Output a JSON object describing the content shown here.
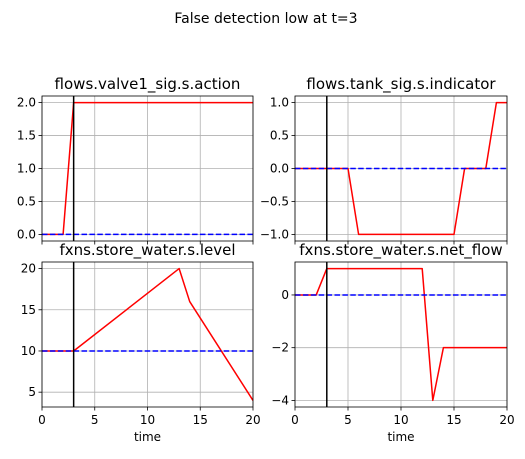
{
  "figure": {
    "suptitle": "False detection low at t=3"
  },
  "colors": {
    "faulty_series": "#ff0000",
    "nominal_series": "#0000ff",
    "marker_line": "#000000",
    "grid": "#b0b0b0"
  },
  "chart_data": [
    {
      "type": "line",
      "title": "flows.valve1_sig.s.action",
      "xlabel": "",
      "ylabel": "",
      "xlim": [
        0,
        20
      ],
      "ylim": [
        -0.1,
        2.1
      ],
      "xticks": [
        0,
        5,
        10,
        15,
        20
      ],
      "show_xtick_labels": false,
      "yticks": [
        0.0,
        0.5,
        1.0,
        1.5,
        2.0
      ],
      "ytick_labels": [
        "0.0",
        "0.5",
        "1.0",
        "1.5",
        "2.0"
      ],
      "grid": true,
      "vline_x": 3,
      "series": [
        {
          "style": "solid",
          "color": "#ff0000",
          "x": [
            0,
            1,
            2,
            3,
            20
          ],
          "y": [
            0,
            0,
            0,
            2,
            2
          ]
        },
        {
          "style": "dashed",
          "color": "#0000ff",
          "x": [
            0,
            20
          ],
          "y": [
            0,
            0
          ]
        }
      ]
    },
    {
      "type": "line",
      "title": "flows.tank_sig.s.indicator",
      "xlabel": "",
      "ylabel": "",
      "xlim": [
        0,
        20
      ],
      "ylim": [
        -1.1,
        1.1
      ],
      "xticks": [
        0,
        5,
        10,
        15,
        20
      ],
      "show_xtick_labels": false,
      "yticks": [
        -1.0,
        -0.5,
        0.0,
        0.5,
        1.0
      ],
      "ytick_labels": [
        "−1.0",
        "−0.5",
        "0.0",
        "0.5",
        "1.0"
      ],
      "grid": true,
      "vline_x": 3,
      "series": [
        {
          "style": "solid",
          "color": "#ff0000",
          "x": [
            0,
            5,
            6,
            15,
            16,
            18,
            19,
            20
          ],
          "y": [
            0,
            0,
            -1,
            -1,
            0,
            0,
            1,
            1
          ]
        },
        {
          "style": "dashed",
          "color": "#0000ff",
          "x": [
            0,
            20
          ],
          "y": [
            0,
            0
          ]
        }
      ]
    },
    {
      "type": "line",
      "title": "fxns.store_water.s.level",
      "xlabel": "time",
      "ylabel": "",
      "xlim": [
        0,
        20
      ],
      "ylim": [
        3.2,
        20.8
      ],
      "xticks": [
        0,
        5,
        10,
        15,
        20
      ],
      "xtick_labels": [
        "0",
        "5",
        "10",
        "15",
        "20"
      ],
      "show_xtick_labels": true,
      "yticks": [
        5,
        10,
        15,
        20
      ],
      "ytick_labels": [
        "5",
        "10",
        "15",
        "20"
      ],
      "grid": true,
      "vline_x": 3,
      "series": [
        {
          "style": "solid",
          "color": "#ff0000",
          "x": [
            0,
            3,
            13,
            14,
            20
          ],
          "y": [
            10,
            10,
            20,
            16,
            4
          ]
        },
        {
          "style": "dashed",
          "color": "#0000ff",
          "x": [
            0,
            20
          ],
          "y": [
            10,
            10
          ]
        }
      ]
    },
    {
      "type": "line",
      "title": "fxns.store_water.s.net_flow",
      "xlabel": "time",
      "ylabel": "",
      "xlim": [
        0,
        20
      ],
      "ylim": [
        -4.25,
        1.25
      ],
      "xticks": [
        0,
        5,
        10,
        15,
        20
      ],
      "xtick_labels": [
        "0",
        "5",
        "10",
        "15",
        "20"
      ],
      "show_xtick_labels": true,
      "yticks": [
        -4,
        -2,
        0
      ],
      "ytick_labels": [
        "−4",
        "−2",
        "0"
      ],
      "grid": true,
      "vline_x": 3,
      "series": [
        {
          "style": "solid",
          "color": "#ff0000",
          "x": [
            0,
            2,
            3,
            12,
            13,
            14,
            20
          ],
          "y": [
            0,
            0,
            1,
            1,
            -4,
            -2,
            -2
          ]
        },
        {
          "style": "dashed",
          "color": "#0000ff",
          "x": [
            0,
            20
          ],
          "y": [
            0,
            0
          ]
        }
      ]
    }
  ]
}
